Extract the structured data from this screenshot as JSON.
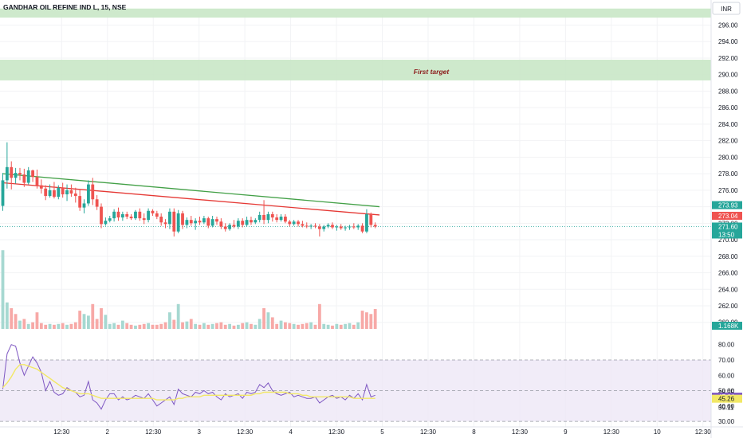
{
  "header": {
    "symbol_title": "GANDHAR OIL REFINE IND L, 15, NSE",
    "currency_button": "INR"
  },
  "annotations": {
    "first_target_label": "First target"
  },
  "colors": {
    "zone_fill": "#c9e7c6",
    "up": "#26a69a",
    "down": "#ef5350",
    "vol_up": "#a6d8d1",
    "vol_down": "#f7a9a7",
    "ma_green": "#43a047",
    "ma_red": "#e53935",
    "rsi_line": "#7e57c2",
    "rsi_ma": "#f2e866",
    "rsi_band": "#ede7f6",
    "grid": "#f2f3f5",
    "axis_text": "#131722",
    "target_text": "#8b1a1a"
  },
  "chart_data": [
    {
      "type": "candlestick",
      "price_axis_ticks": [
        "296.00",
        "294.00",
        "292.00",
        "290.00",
        "288.00",
        "286.00",
        "284.00",
        "282.00",
        "280.00",
        "278.00",
        "276.00",
        "274.00",
        "272.00",
        "270.00",
        "268.00",
        "266.00",
        "264.00",
        "262.00",
        "260.00"
      ],
      "ylim": [
        259.3,
        297.3
      ],
      "zones": [
        {
          "name": "top-zone",
          "y_from": 296.9,
          "y_to": 298.0
        },
        {
          "name": "first-target-zone",
          "y_from": 289.3,
          "y_to": 291.8
        }
      ],
      "series": [
        {
          "name": "",
          "type": "ohlc",
          "values": [
            [
              274.1,
              278.1,
              273.5,
              277.2
            ],
            [
              277.2,
              281.8,
              276.2,
              278.8
            ],
            [
              278.8,
              279.5,
              276.1,
              277.5
            ],
            [
              277.5,
              278.7,
              276.8,
              278.1
            ],
            [
              278.1,
              278.7,
              277.2,
              277.9
            ],
            [
              277.9,
              278.6,
              276.4,
              276.9
            ],
            [
              276.9,
              278.8,
              276.7,
              278.4
            ],
            [
              278.4,
              278.5,
              277.0,
              277.6
            ],
            [
              277.6,
              278.5,
              276.2,
              276.6
            ],
            [
              276.6,
              277.3,
              275.6,
              276.2
            ],
            [
              276.2,
              276.6,
              274.8,
              275.3
            ],
            [
              275.3,
              276.7,
              275.1,
              276.0
            ],
            [
              276.0,
              277.0,
              275.0,
              275.2
            ],
            [
              275.2,
              276.6,
              274.9,
              276.3
            ],
            [
              276.3,
              276.9,
              275.1,
              275.5
            ],
            [
              275.5,
              276.7,
              274.7,
              276.0
            ],
            [
              276.0,
              276.7,
              275.2,
              275.6
            ],
            [
              275.6,
              276.3,
              274.5,
              275.3
            ],
            [
              275.3,
              276.1,
              273.5,
              273.9
            ],
            [
              273.9,
              274.9,
              273.2,
              274.4
            ],
            [
              274.4,
              277.2,
              274.1,
              276.7
            ],
            [
              276.7,
              277.5,
              274.2,
              274.9
            ],
            [
              274.9,
              275.4,
              273.6,
              274.0
            ],
            [
              274.0,
              274.4,
              271.4,
              271.9
            ],
            [
              271.9,
              272.7,
              271.7,
              272.3
            ],
            [
              272.3,
              272.9,
              272.1,
              272.6
            ],
            [
              272.6,
              273.7,
              272.2,
              273.4
            ],
            [
              273.4,
              273.9,
              272.3,
              272.7
            ],
            [
              272.7,
              273.4,
              272.3,
              273.1
            ],
            [
              273.1,
              273.4,
              272.5,
              272.8
            ],
            [
              272.8,
              273.1,
              272.4,
              272.6
            ],
            [
              272.6,
              273.6,
              272.4,
              273.4
            ],
            [
              273.4,
              273.8,
              272.3,
              272.6
            ],
            [
              272.6,
              273.2,
              271.9,
              272.4
            ],
            [
              272.4,
              273.8,
              272.1,
              273.5
            ],
            [
              273.5,
              273.7,
              272.9,
              273.2
            ],
            [
              273.2,
              273.5,
              272.5,
              272.8
            ],
            [
              272.8,
              273.2,
              271.7,
              272.1
            ],
            [
              272.1,
              272.5,
              271.4,
              271.9
            ],
            [
              271.9,
              273.8,
              271.3,
              273.4
            ],
            [
              273.4,
              273.8,
              270.4,
              271.0
            ],
            [
              271.0,
              273.6,
              270.8,
              273.2
            ],
            [
              273.2,
              273.5,
              271.3,
              271.8
            ],
            [
              271.8,
              272.7,
              271.4,
              272.4
            ],
            [
              272.4,
              272.9,
              271.7,
              272.0
            ],
            [
              272.0,
              272.6,
              271.2,
              272.3
            ],
            [
              272.3,
              272.8,
              271.8,
              272.1
            ],
            [
              272.1,
              272.9,
              271.9,
              272.6
            ],
            [
              272.6,
              272.8,
              271.4,
              271.7
            ],
            [
              271.7,
              272.9,
              271.5,
              272.5
            ],
            [
              272.5,
              272.8,
              271.8,
              272.2
            ],
            [
              272.2,
              272.6,
              271.3,
              271.6
            ],
            [
              271.6,
              272.0,
              271.0,
              271.3
            ],
            [
              271.3,
              272.0,
              271.1,
              271.8
            ],
            [
              271.8,
              272.4,
              271.4,
              271.6
            ],
            [
              271.6,
              272.6,
              271.3,
              272.3
            ],
            [
              272.3,
              272.6,
              271.5,
              271.8
            ],
            [
              271.8,
              272.8,
              271.6,
              272.4
            ],
            [
              272.4,
              272.8,
              271.8,
              272.1
            ],
            [
              272.1,
              272.6,
              271.9,
              272.4
            ],
            [
              272.4,
              273.4,
              272.1,
              273.0
            ],
            [
              273.0,
              274.8,
              271.9,
              272.4
            ],
            [
              272.4,
              273.4,
              272.0,
              273.1
            ],
            [
              273.1,
              273.4,
              272.2,
              272.7
            ],
            [
              272.7,
              273.1,
              272.1,
              272.4
            ],
            [
              272.4,
              273.1,
              272.2,
              272.8
            ],
            [
              272.8,
              273.1,
              272.0,
              272.2
            ],
            [
              272.2,
              272.4,
              271.6,
              271.9
            ],
            [
              271.9,
              272.4,
              271.7,
              272.2
            ],
            [
              272.2,
              272.4,
              271.6,
              271.9
            ],
            [
              271.9,
              272.3,
              271.5,
              271.7
            ],
            [
              271.7,
              272.1,
              271.4,
              271.6
            ],
            [
              271.6,
              271.9,
              271.3,
              271.7
            ],
            [
              271.7,
              272.0,
              271.4,
              271.6
            ],
            [
              271.6,
              271.9,
              270.4,
              271.3
            ],
            [
              271.3,
              271.8,
              271.0,
              271.6
            ],
            [
              271.6,
              272.0,
              271.4,
              271.8
            ],
            [
              271.8,
              272.1,
              271.3,
              271.5
            ],
            [
              271.5,
              271.8,
              271.1,
              271.6
            ],
            [
              271.6,
              271.9,
              271.2,
              271.4
            ],
            [
              271.4,
              271.7,
              271.1,
              271.5
            ],
            [
              271.5,
              271.8,
              271.2,
              271.6
            ],
            [
              271.6,
              272.0,
              271.3,
              271.5
            ],
            [
              271.5,
              271.9,
              271.2,
              271.7
            ],
            [
              271.7,
              272.0,
              270.8,
              271.0
            ],
            [
              271.0,
              273.7,
              270.8,
              273.1
            ],
            [
              273.1,
              273.3,
              271.5,
              271.8
            ],
            [
              271.8,
              272.1,
              271.4,
              271.6
            ]
          ]
        },
        {
          "name": "",
          "type": "line",
          "role": "upper-ma",
          "x_from": 0,
          "x_to": 88,
          "values": [
            278.0,
            274.0
          ]
        },
        {
          "name": "",
          "type": "line",
          "role": "lower-ma",
          "x_from": 0,
          "x_to": 88,
          "values": [
            276.9,
            273.0
          ]
        }
      ],
      "price_labels": [
        {
          "text": "273.93",
          "color": "#26a69a"
        },
        {
          "text": "273.04",
          "color": "#ef5350"
        },
        {
          "text": "271.60",
          "color": "#26a69a",
          "countdown": "13:50"
        }
      ],
      "last_price": 271.6
    },
    {
      "type": "bar",
      "role": "volume",
      "label": "1.168K",
      "values": [
        0.95,
        0.32,
        0.25,
        0.18,
        0.1,
        0.12,
        0.06,
        0.08,
        0.2,
        0.07,
        0.05,
        0.06,
        0.05,
        0.06,
        0.07,
        0.05,
        0.06,
        0.08,
        0.22,
        0.18,
        0.16,
        0.3,
        0.12,
        0.25,
        0.17,
        0.06,
        0.07,
        0.05,
        0.1,
        0.07,
        0.05,
        0.04,
        0.05,
        0.06,
        0.07,
        0.05,
        0.05,
        0.06,
        0.08,
        0.2,
        0.11,
        0.3,
        0.08,
        0.09,
        0.12,
        0.06,
        0.05,
        0.07,
        0.05,
        0.06,
        0.07,
        0.08,
        0.05,
        0.06,
        0.04,
        0.05,
        0.07,
        0.08,
        0.06,
        0.05,
        0.12,
        0.25,
        0.2,
        0.14,
        0.06,
        0.1,
        0.08,
        0.07,
        0.06,
        0.05,
        0.06,
        0.07,
        0.08,
        0.05,
        0.3,
        0.06,
        0.05,
        0.04,
        0.06,
        0.05,
        0.06,
        0.07,
        0.05,
        0.08,
        0.22,
        0.2,
        0.18,
        0.24
      ],
      "up": [
        true,
        true,
        false,
        false,
        true,
        false,
        true,
        false,
        false,
        false,
        false,
        true,
        false,
        true,
        false,
        true,
        false,
        false,
        false,
        true,
        true,
        false,
        false,
        false,
        true,
        true,
        true,
        false,
        true,
        false,
        false,
        true,
        false,
        false,
        true,
        false,
        false,
        false,
        false,
        true,
        false,
        true,
        false,
        true,
        false,
        true,
        false,
        true,
        false,
        true,
        false,
        false,
        false,
        true,
        false,
        true,
        false,
        true,
        false,
        true,
        true,
        false,
        true,
        false,
        false,
        true,
        false,
        false,
        true,
        false,
        false,
        false,
        true,
        false,
        false,
        true,
        true,
        false,
        true,
        false,
        true,
        true,
        false,
        true,
        false,
        false,
        false,
        false
      ]
    },
    {
      "type": "line",
      "role": "rsi",
      "axis_ticks": [
        "80.00",
        "70.00",
        "60.00",
        "50.00",
        "40.00",
        "30.00"
      ],
      "ylim": [
        28.5,
        84.5
      ],
      "band": [
        30,
        70
      ],
      "midline": 50,
      "series": [
        {
          "name": "",
          "role": "rsi",
          "values": [
            51,
            74,
            80,
            79,
            68,
            60,
            66,
            72,
            68,
            62,
            50,
            56,
            49,
            47,
            48,
            52,
            50,
            49,
            46,
            47,
            56,
            44,
            42,
            38,
            44,
            48,
            48,
            44,
            46,
            44,
            45,
            47,
            46,
            45,
            48,
            44,
            40,
            42,
            44,
            46,
            41,
            51,
            48,
            47,
            46,
            49,
            48,
            50,
            48,
            49,
            46,
            44,
            48,
            46,
            47,
            48,
            45,
            49,
            48,
            49,
            54,
            52,
            55,
            50,
            48,
            47,
            48,
            49,
            46,
            47,
            46,
            45,
            45,
            46,
            42,
            44,
            46,
            47,
            45,
            46,
            44,
            47,
            45,
            48,
            44,
            54,
            46,
            47
          ]
        },
        {
          "name": "",
          "role": "rsi-ma",
          "values": [
            52,
            55,
            59,
            64,
            67,
            67,
            66,
            65,
            64,
            62,
            60,
            58,
            56,
            54,
            52,
            51,
            50,
            49,
            48,
            48,
            48,
            47,
            46,
            45,
            45,
            45,
            45,
            45,
            45,
            45,
            45,
            45,
            45,
            45,
            45,
            45,
            44,
            44,
            44,
            44,
            44,
            45,
            45,
            46,
            46,
            46,
            46,
            47,
            47,
            47,
            47,
            47,
            47,
            47,
            47,
            47,
            47,
            47,
            47,
            48,
            48,
            49,
            49,
            49,
            49,
            49,
            49,
            48,
            48,
            48,
            47,
            47,
            46,
            46,
            46,
            46,
            46,
            46,
            46,
            46,
            46,
            46,
            45,
            45,
            45,
            45,
            45,
            45
          ]
        }
      ],
      "value_labels": [
        {
          "text": "48.95",
          "color": "none"
        },
        {
          "text": "47.64",
          "color": "#7e57c2"
        },
        {
          "text": "45.26",
          "color": "#f2e866"
        },
        {
          "text": "39.11",
          "color": "none"
        }
      ]
    }
  ],
  "time_axis": {
    "labels": [
      "12:30",
      "2",
      "12:30",
      "3",
      "12:30",
      "4",
      "12:30",
      "5",
      "12:30",
      "8",
      "12:30",
      "9",
      "12:30",
      "10",
      "12:30"
    ],
    "bars_per_day": 25,
    "first_label_bar": 13
  }
}
